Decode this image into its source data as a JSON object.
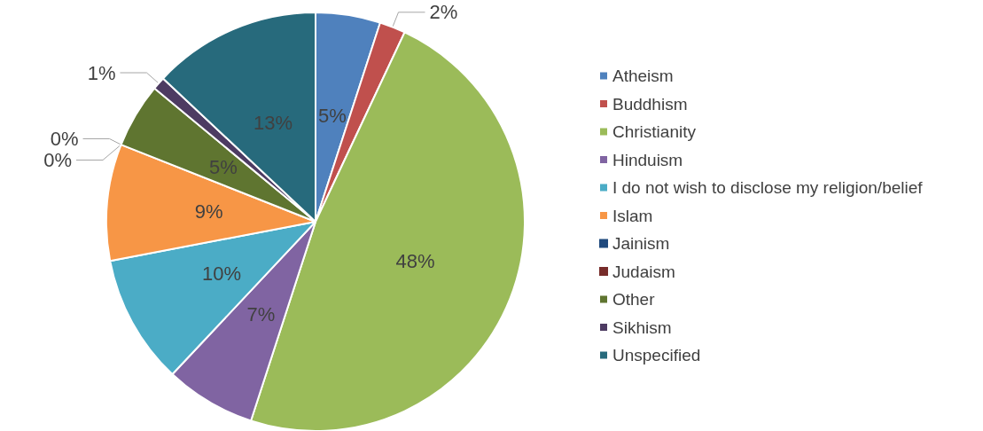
{
  "chart_data": {
    "type": "pie",
    "categories": [
      "Atheism",
      "Buddhism",
      "Christianity",
      "Hinduism",
      "I do not wish to disclose my religion/belief",
      "Islam",
      "Jainism",
      "Judaism",
      "Other",
      "Sikhism",
      "Unspecified"
    ],
    "values": [
      5,
      2,
      48,
      7,
      10,
      9,
      0,
      0,
      5,
      1,
      13
    ],
    "value_labels": [
      "5%",
      "2%",
      "48%",
      "7%",
      "10%",
      "9%",
      "0%",
      "0%",
      "5%",
      "1%",
      "13%"
    ],
    "colors": [
      "#4f81bd",
      "#c0504d",
      "#9bbb59",
      "#8064a2",
      "#4bacc6",
      "#f79646",
      "#1f497d",
      "#772c2a",
      "#5f7530",
      "#4d3b62",
      "#276a7c"
    ],
    "legend": "right"
  }
}
